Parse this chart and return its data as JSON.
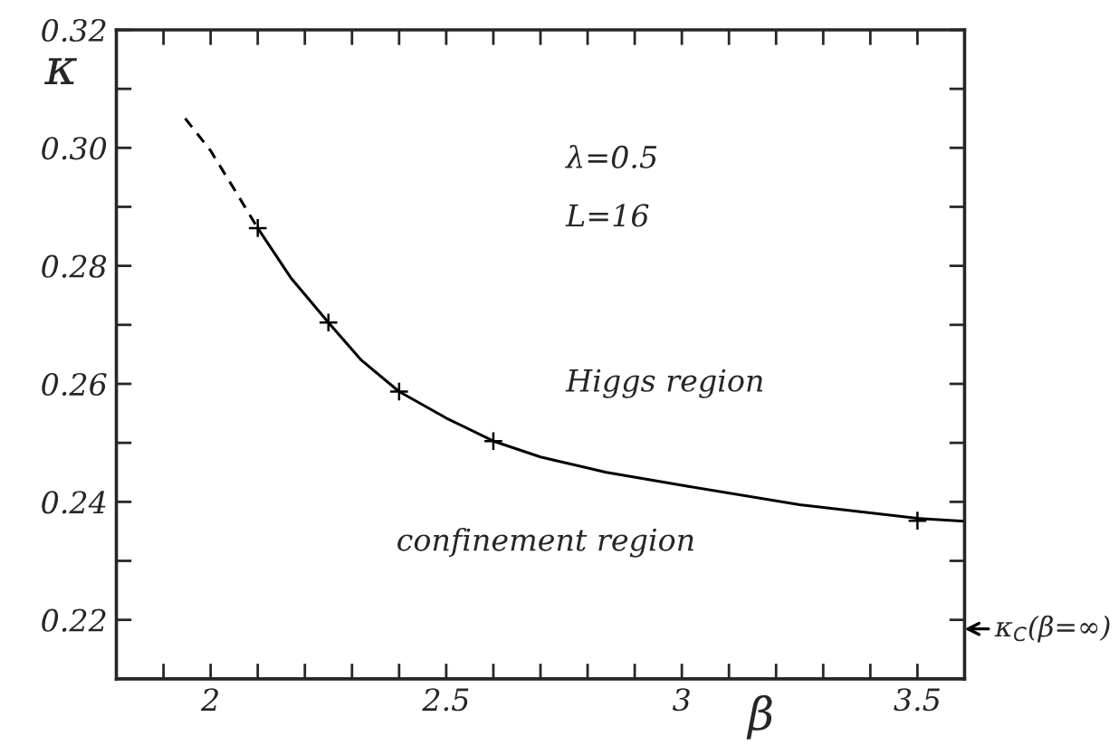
{
  "chart_data": {
    "type": "line",
    "xlabel": "β",
    "ylabel": "κ",
    "series": [
      {
        "color": "#000000",
        "line_style": "dashed",
        "marker": "none",
        "x": [
          1.946,
          2.0,
          2.05,
          2.1
        ],
        "values": [
          0.305,
          0.2995,
          0.293,
          0.2864
        ]
      },
      {
        "color": "#000000",
        "line_style": "solid",
        "marker": "none",
        "x": [
          2.1,
          2.17,
          2.25,
          2.32,
          2.4,
          2.5,
          2.6,
          2.7,
          2.84,
          3.0,
          3.25,
          3.5,
          3.6
        ],
        "values": [
          0.2864,
          0.278,
          0.2704,
          0.264,
          0.2587,
          0.2542,
          0.2503,
          0.2476,
          0.245,
          0.2428,
          0.2395,
          0.2372,
          0.2367
        ]
      },
      {
        "type": "scatter",
        "color": "#000000",
        "marker": "cross",
        "x": [
          2.1,
          2.25,
          2.4,
          2.6,
          3.5
        ],
        "values": [
          0.2864,
          0.2704,
          0.2587,
          0.2503,
          0.2368
        ]
      }
    ],
    "xlim": [
      1.8,
      3.6
    ],
    "xticks": [
      {
        "value": 1.9,
        "label": null
      },
      {
        "value": 2,
        "label": "2"
      },
      {
        "value": 2.1,
        "label": null
      },
      {
        "value": 2.2,
        "label": null
      },
      {
        "value": 2.3,
        "label": null
      },
      {
        "value": 2.4,
        "label": null
      },
      2.5,
      {
        "value": 2.6,
        "label": null
      },
      {
        "value": 2.7,
        "label": null
      },
      {
        "value": 2.8,
        "label": null
      },
      {
        "value": 2.9,
        "label": null
      },
      {
        "value": 3,
        "label": "3"
      },
      {
        "value": 3.1,
        "label": null
      },
      {
        "value": 3.2,
        "label": null
      },
      {
        "value": 3.3,
        "label": null
      },
      {
        "value": 3.4,
        "label": null
      },
      3.5
    ],
    "ylim": [
      0.21,
      0.32
    ],
    "yticks": [
      {
        "value": 0.22,
        "label": "0.22"
      },
      {
        "value": 0.23,
        "label": null
      },
      {
        "value": 0.24,
        "label": "0.24"
      },
      {
        "value": 0.25,
        "label": null
      },
      {
        "value": 0.26,
        "label": "0.26"
      },
      {
        "value": 0.27,
        "label": null
      },
      {
        "value": 0.28,
        "label": "0.28"
      },
      {
        "value": 0.29,
        "label": null
      },
      {
        "value": 0.3,
        "label": "0.30"
      },
      {
        "value": 0.31,
        "label": null
      },
      {
        "value": 0.32,
        "label": "0.32"
      }
    ],
    "grid": false,
    "legend": false,
    "annotations": [
      "λ=0.5",
      "L=16",
      "Higgs region",
      "confinement region",
      "κ$_{C}$(β=∞)"
    ]
  }
}
